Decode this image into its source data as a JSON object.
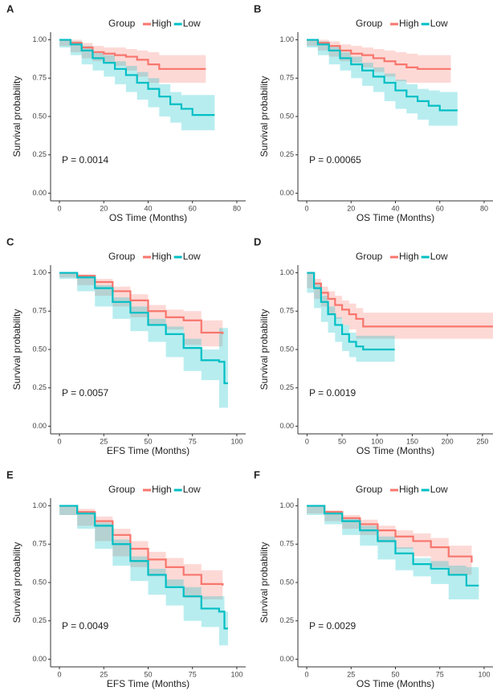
{
  "chart_data": [
    {
      "type": "step",
      "panel": "A",
      "legend_title": "Group",
      "xlabel": "OS Time (Months)",
      "ylabel": "Survival probability",
      "annotation": "P = 0.0014",
      "xlim": [
        -4,
        84
      ],
      "ylim": [
        -0.05,
        1.05
      ],
      "xticks": [
        0,
        20,
        40,
        60,
        80
      ],
      "yticks": [
        {
          "value": 0,
          "label": "0.00"
        },
        {
          "value": 0.25,
          "label": "0.25"
        },
        {
          "value": 0.5,
          "label": "0.50"
        },
        {
          "value": 0.75,
          "label": "0.75"
        },
        {
          "value": 1,
          "label": "1.00"
        }
      ],
      "series": [
        {
          "name": "High",
          "color": "#f8766d",
          "x": [
            0,
            5,
            10,
            15,
            20,
            25,
            30,
            35,
            40,
            45,
            50,
            55,
            60,
            66
          ],
          "values": [
            1,
            0.98,
            0.95,
            0.92,
            0.91,
            0.9,
            0.89,
            0.87,
            0.84,
            0.81,
            0.81,
            0.81,
            0.81,
            0.81
          ],
          "lower": [
            1,
            0.96,
            0.92,
            0.88,
            0.86,
            0.85,
            0.83,
            0.8,
            0.76,
            0.72,
            0.72,
            0.72,
            0.72,
            0.72
          ],
          "upper": [
            1,
            1,
            0.98,
            0.96,
            0.95,
            0.95,
            0.94,
            0.93,
            0.92,
            0.9,
            0.9,
            0.9,
            0.9,
            0.9
          ]
        },
        {
          "name": "Low",
          "color": "#00bfc4",
          "x": [
            0,
            5,
            10,
            15,
            20,
            25,
            30,
            35,
            40,
            45,
            50,
            55,
            60,
            70
          ],
          "values": [
            1,
            0.97,
            0.93,
            0.88,
            0.85,
            0.81,
            0.77,
            0.72,
            0.68,
            0.63,
            0.58,
            0.55,
            0.51,
            0.51
          ],
          "lower": [
            1,
            0.95,
            0.9,
            0.84,
            0.8,
            0.76,
            0.71,
            0.66,
            0.61,
            0.56,
            0.5,
            0.46,
            0.41,
            0.41
          ],
          "upper": [
            1,
            0.99,
            0.96,
            0.92,
            0.9,
            0.86,
            0.83,
            0.79,
            0.75,
            0.71,
            0.66,
            0.64,
            0.64,
            0.64
          ]
        }
      ]
    },
    {
      "type": "step",
      "panel": "B",
      "legend_title": "Group",
      "xlabel": "OS Time (Months)",
      "ylabel": "Survival probability",
      "annotation": "P = 0.00065",
      "xlim": [
        -4,
        84
      ],
      "ylim": [
        -0.05,
        1.05
      ],
      "xticks": [
        0,
        20,
        40,
        60,
        80
      ],
      "yticks": [
        {
          "value": 0,
          "label": "0.00"
        },
        {
          "value": 0.25,
          "label": "0.25"
        },
        {
          "value": 0.5,
          "label": "0.50"
        },
        {
          "value": 0.75,
          "label": "0.75"
        },
        {
          "value": 1,
          "label": "1.00"
        }
      ],
      "series": [
        {
          "name": "High",
          "color": "#f8766d",
          "x": [
            0,
            5,
            10,
            15,
            20,
            25,
            30,
            35,
            40,
            45,
            50,
            55,
            60,
            65
          ],
          "values": [
            1,
            0.98,
            0.96,
            0.93,
            0.91,
            0.9,
            0.88,
            0.86,
            0.84,
            0.82,
            0.81,
            0.81,
            0.81,
            0.81
          ],
          "lower": [
            1,
            0.96,
            0.93,
            0.89,
            0.86,
            0.85,
            0.82,
            0.79,
            0.76,
            0.73,
            0.72,
            0.72,
            0.72,
            0.72
          ],
          "upper": [
            1,
            1,
            0.99,
            0.97,
            0.96,
            0.95,
            0.94,
            0.93,
            0.92,
            0.91,
            0.9,
            0.9,
            0.9,
            0.9
          ]
        },
        {
          "name": "Low",
          "color": "#00bfc4",
          "x": [
            0,
            5,
            10,
            15,
            20,
            25,
            30,
            35,
            40,
            45,
            50,
            55,
            60,
            68
          ],
          "values": [
            1,
            0.97,
            0.93,
            0.88,
            0.84,
            0.8,
            0.76,
            0.72,
            0.67,
            0.63,
            0.6,
            0.57,
            0.54,
            0.54
          ],
          "lower": [
            1,
            0.95,
            0.9,
            0.84,
            0.8,
            0.75,
            0.7,
            0.66,
            0.6,
            0.55,
            0.52,
            0.48,
            0.44,
            0.44
          ],
          "upper": [
            1,
            0.99,
            0.96,
            0.92,
            0.89,
            0.85,
            0.82,
            0.78,
            0.74,
            0.71,
            0.68,
            0.67,
            0.66,
            0.66
          ]
        }
      ]
    },
    {
      "type": "step",
      "panel": "C",
      "legend_title": "Group",
      "xlabel": "EFS Time (Months)",
      "ylabel": "Survival probability",
      "annotation": "P = 0.0057",
      "xlim": [
        -5,
        105
      ],
      "ylim": [
        -0.05,
        1.05
      ],
      "xticks": [
        0,
        25,
        50,
        75,
        100
      ],
      "yticks": [
        {
          "value": 0,
          "label": "0.00"
        },
        {
          "value": 0.25,
          "label": "0.25"
        },
        {
          "value": 0.5,
          "label": "0.50"
        },
        {
          "value": 0.75,
          "label": "0.75"
        },
        {
          "value": 1,
          "label": "1.00"
        }
      ],
      "series": [
        {
          "name": "High",
          "color": "#f8766d",
          "x": [
            0,
            10,
            20,
            30,
            40,
            50,
            60,
            70,
            80,
            92
          ],
          "values": [
            1,
            0.98,
            0.94,
            0.88,
            0.82,
            0.75,
            0.71,
            0.69,
            0.61,
            0.6
          ],
          "lower": [
            1,
            0.97,
            0.92,
            0.85,
            0.78,
            0.71,
            0.66,
            0.63,
            0.53,
            0.52
          ],
          "upper": [
            1,
            0.99,
            0.96,
            0.91,
            0.86,
            0.79,
            0.76,
            0.75,
            0.69,
            0.68
          ]
        },
        {
          "name": "Low",
          "color": "#00bfc4",
          "x": [
            0,
            10,
            20,
            30,
            40,
            50,
            60,
            70,
            80,
            90,
            93,
            95
          ],
          "values": [
            1,
            0.97,
            0.9,
            0.81,
            0.74,
            0.66,
            0.6,
            0.51,
            0.43,
            0.42,
            0.28,
            0.28
          ],
          "lower": [
            1,
            0.96,
            0.88,
            0.78,
            0.7,
            0.62,
            0.55,
            0.45,
            0.36,
            0.3,
            0.12,
            0.12
          ],
          "upper": [
            1,
            0.98,
            0.92,
            0.84,
            0.78,
            0.7,
            0.65,
            0.57,
            0.5,
            0.64,
            0.64,
            0.64
          ]
        }
      ]
    },
    {
      "type": "step",
      "panel": "D",
      "legend_title": "Group",
      "xlabel": "OS Time (Months)",
      "ylabel": "Survival probability",
      "annotation": "P = 0.0019",
      "xlim": [
        -13,
        265
      ],
      "ylim": [
        -0.05,
        1.05
      ],
      "xticks": [
        0,
        50,
        100,
        150,
        200,
        250
      ],
      "yticks": [
        {
          "value": 0,
          "label": "0.00"
        },
        {
          "value": 0.25,
          "label": "0.25"
        },
        {
          "value": 0.5,
          "label": "0.50"
        },
        {
          "value": 0.75,
          "label": "0.75"
        },
        {
          "value": 1,
          "label": "1.00"
        }
      ],
      "series": [
        {
          "name": "High",
          "color": "#f8766d",
          "x": [
            0,
            10,
            20,
            30,
            40,
            50,
            60,
            70,
            80,
            265
          ],
          "values": [
            1,
            0.93,
            0.87,
            0.83,
            0.79,
            0.76,
            0.73,
            0.7,
            0.65,
            0.65
          ],
          "lower": [
            1,
            0.9,
            0.83,
            0.78,
            0.73,
            0.7,
            0.66,
            0.63,
            0.57,
            0.57
          ],
          "upper": [
            1,
            0.96,
            0.91,
            0.88,
            0.85,
            0.82,
            0.8,
            0.77,
            0.74,
            0.74
          ]
        },
        {
          "name": "Low",
          "color": "#00bfc4",
          "x": [
            0,
            10,
            20,
            30,
            40,
            50,
            60,
            70,
            80,
            125
          ],
          "values": [
            1,
            0.9,
            0.81,
            0.73,
            0.66,
            0.6,
            0.55,
            0.52,
            0.5,
            0.5
          ],
          "lower": [
            1,
            0.87,
            0.77,
            0.68,
            0.61,
            0.55,
            0.49,
            0.45,
            0.42,
            0.42
          ],
          "upper": [
            1,
            0.93,
            0.85,
            0.78,
            0.71,
            0.66,
            0.61,
            0.59,
            0.59,
            0.59
          ]
        }
      ]
    },
    {
      "type": "step",
      "panel": "E",
      "legend_title": "Group",
      "xlabel": "EFS Time (Months)",
      "ylabel": "Survival probability",
      "annotation": "P = 0.0049",
      "xlim": [
        -5,
        105
      ],
      "ylim": [
        -0.05,
        1.05
      ],
      "xticks": [
        0,
        25,
        50,
        75,
        100
      ],
      "yticks": [
        {
          "value": 0,
          "label": "0.00"
        },
        {
          "value": 0.25,
          "label": "0.25"
        },
        {
          "value": 0.5,
          "label": "0.50"
        },
        {
          "value": 0.75,
          "label": "0.75"
        },
        {
          "value": 1,
          "label": "1.00"
        }
      ],
      "series": [
        {
          "name": "High",
          "color": "#f8766d",
          "x": [
            0,
            10,
            20,
            30,
            40,
            50,
            60,
            70,
            80,
            92
          ],
          "values": [
            1,
            0.96,
            0.9,
            0.81,
            0.72,
            0.65,
            0.6,
            0.55,
            0.49,
            0.48
          ],
          "lower": [
            1,
            0.94,
            0.87,
            0.77,
            0.67,
            0.6,
            0.54,
            0.48,
            0.4,
            0.39
          ],
          "upper": [
            1,
            0.98,
            0.93,
            0.85,
            0.77,
            0.7,
            0.66,
            0.62,
            0.58,
            0.58
          ]
        },
        {
          "name": "Low",
          "color": "#00bfc4",
          "x": [
            0,
            10,
            20,
            30,
            40,
            50,
            60,
            70,
            80,
            90,
            93,
            95
          ],
          "values": [
            1,
            0.95,
            0.87,
            0.75,
            0.64,
            0.55,
            0.47,
            0.41,
            0.33,
            0.31,
            0.2,
            0.2
          ],
          "lower": [
            1,
            0.94,
            0.85,
            0.72,
            0.61,
            0.51,
            0.42,
            0.35,
            0.25,
            0.21,
            0.09,
            0.09
          ],
          "upper": [
            1,
            0.96,
            0.89,
            0.78,
            0.67,
            0.59,
            0.52,
            0.47,
            0.41,
            0.41,
            0.31,
            0.31
          ]
        }
      ]
    },
    {
      "type": "step",
      "panel": "F",
      "legend_title": "Group",
      "xlabel": "OS Time (Months)",
      "ylabel": "Survival probability",
      "annotation": "P = 0.0029",
      "xlim": [
        -5,
        105
      ],
      "ylim": [
        -0.05,
        1.05
      ],
      "xticks": [
        0,
        25,
        50,
        75,
        100
      ],
      "yticks": [
        {
          "value": 0,
          "label": "0.00"
        },
        {
          "value": 0.25,
          "label": "0.25"
        },
        {
          "value": 0.5,
          "label": "0.50"
        },
        {
          "value": 0.75,
          "label": "0.75"
        },
        {
          "value": 1,
          "label": "1.00"
        }
      ],
      "series": [
        {
          "name": "High",
          "color": "#f8766d",
          "x": [
            0,
            10,
            20,
            30,
            40,
            50,
            60,
            70,
            80,
            93
          ],
          "values": [
            1,
            0.96,
            0.92,
            0.88,
            0.84,
            0.8,
            0.77,
            0.73,
            0.67,
            0.63
          ],
          "lower": [
            1,
            0.95,
            0.9,
            0.85,
            0.81,
            0.76,
            0.72,
            0.67,
            0.6,
            0.55
          ],
          "upper": [
            1,
            0.97,
            0.94,
            0.91,
            0.87,
            0.84,
            0.82,
            0.79,
            0.74,
            0.71
          ]
        },
        {
          "name": "Low",
          "color": "#00bfc4",
          "x": [
            0,
            10,
            20,
            30,
            40,
            50,
            60,
            70,
            80,
            90,
            97
          ],
          "values": [
            1,
            0.95,
            0.9,
            0.84,
            0.77,
            0.69,
            0.62,
            0.59,
            0.55,
            0.48,
            0.48
          ],
          "lower": [
            1,
            0.94,
            0.88,
            0.81,
            0.74,
            0.65,
            0.58,
            0.54,
            0.49,
            0.39,
            0.39
          ],
          "upper": [
            1,
            0.96,
            0.92,
            0.87,
            0.8,
            0.73,
            0.66,
            0.64,
            0.61,
            0.6,
            0.6
          ]
        }
      ]
    }
  ]
}
